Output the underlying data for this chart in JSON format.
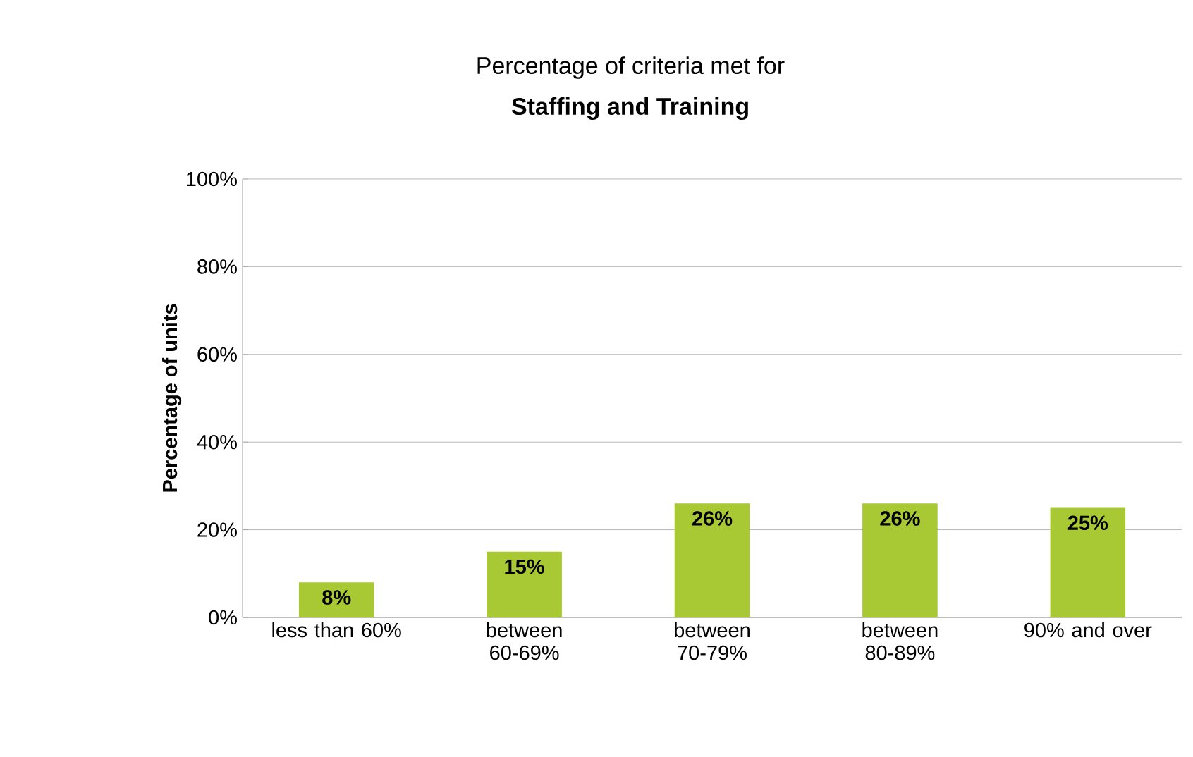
{
  "chart_data": {
    "type": "bar",
    "title": "Percentage of criteria met for",
    "subtitle": "Staffing and Training",
    "ylabel": "Percentage of units",
    "categories": [
      "less than 60%",
      "between 60-69%",
      "between 70-79%",
      "between 80-89%",
      "90% and over"
    ],
    "values": [
      8,
      15,
      26,
      26,
      25
    ],
    "color": "#a9c934",
    "value_labels": [
      "8%",
      "15%",
      "26%",
      "26%",
      "25%"
    ],
    "ylim": [
      0,
      100
    ],
    "yticks": [
      {
        "value": 0,
        "label": "0%"
      },
      {
        "value": 20,
        "label": "20%"
      },
      {
        "value": 40,
        "label": "40%"
      },
      {
        "value": 60,
        "label": "60%"
      },
      {
        "value": 80,
        "label": "80%"
      },
      {
        "value": 100,
        "label": "100%"
      }
    ],
    "grid": "y"
  }
}
